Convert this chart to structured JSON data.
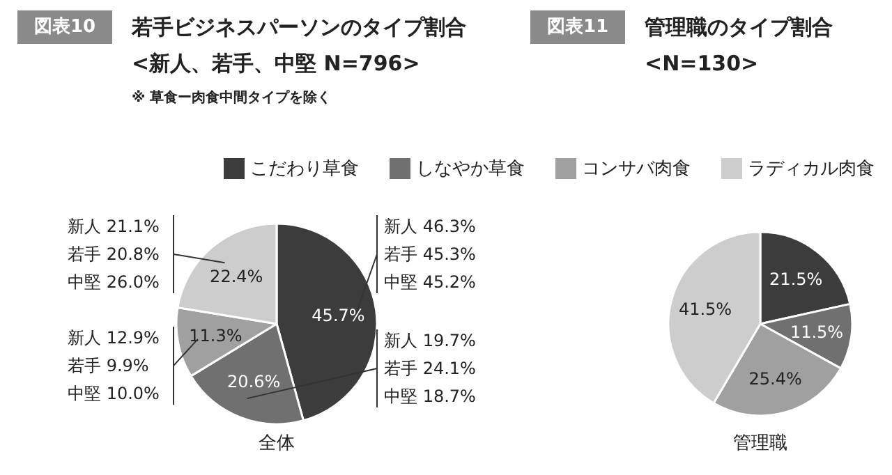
{
  "chart_data": [
    {
      "type": "pie",
      "title": "図表10 若手ビジネスパーソンのタイプ割合",
      "subtitle": "<新人、若手、中堅 N=796>",
      "xlabel": "全体",
      "categories": [
        "こだわり草食",
        "しなやか草食",
        "コンサバ肉食",
        "ラディカル肉食"
      ],
      "values": [
        45.7,
        20.6,
        11.3,
        22.4
      ],
      "value_labels": [
        "45.7%",
        "20.6%",
        "11.3%",
        "22.4%"
      ],
      "colors": [
        "#3c3c3c",
        "#707070",
        "#a0a0a0",
        "#cdcdcd"
      ],
      "legend": "top",
      "annotations": [
        "※ 草食ー肉食中間タイプを除く",
        "新人 21.1%",
        "若手 20.8%",
        "中堅 26.0%",
        "新人 12.9%",
        "若手 9.9%",
        "中堅 10.0%",
        "新人 46.3%",
        "若手 45.3%",
        "中堅 45.2%",
        "新人 19.7%",
        "若手 24.1%",
        "中堅 18.7%"
      ]
    },
    {
      "type": "pie",
      "title": "図表11 管理職のタイプ割合",
      "subtitle": "<N=130>",
      "xlabel": "管理職",
      "values": [
        21.5,
        11.5,
        25.4,
        41.5
      ],
      "value_labels": [
        "21.5%",
        "11.5%",
        "25.4%",
        "41.5%"
      ],
      "colors": [
        "#3c3c3c",
        "#707070",
        "#a0a0a0",
        "#cdcdcd"
      ]
    }
  ]
}
